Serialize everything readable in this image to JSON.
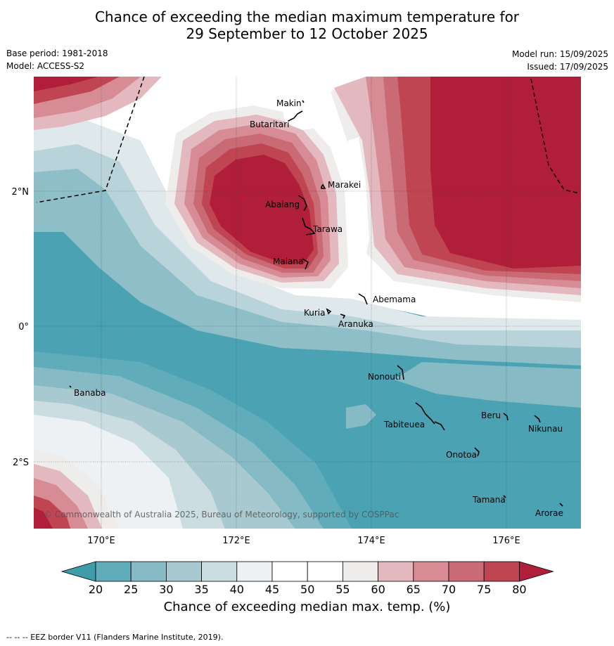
{
  "title_line1": "Chance of exceeding the median maximum temperature for",
  "title_line2": "29 September to 12 October 2025",
  "meta": {
    "base_period": "Base period: 1981-2018",
    "model": "Model: ACCESS-S2",
    "model_run": "Model run: 15/09/2025",
    "issued": "Issued: 17/09/2025"
  },
  "axes": {
    "lon_ticks": [
      "170°E",
      "172°E",
      "174°E",
      "176°E"
    ],
    "lat_ticks": [
      "2°N",
      "0°",
      "2°S"
    ]
  },
  "places": [
    {
      "name": "Makin"
    },
    {
      "name": "Butaritari"
    },
    {
      "name": "Marakei"
    },
    {
      "name": "Abaiang"
    },
    {
      "name": "Tarawa"
    },
    {
      "name": "Maiana"
    },
    {
      "name": "Abemama"
    },
    {
      "name": "Kuria"
    },
    {
      "name": "Aranuka"
    },
    {
      "name": "Nonouti"
    },
    {
      "name": "Banaba"
    },
    {
      "name": "Beru"
    },
    {
      "name": "Nikunau"
    },
    {
      "name": "Tabiteuea"
    },
    {
      "name": "Onotoa"
    },
    {
      "name": "Tamana"
    },
    {
      "name": "Arorae"
    }
  ],
  "copyright": "© Commonwealth of Australia 2025, Bureau of Meteorology, supported by COSPPac",
  "colorbar": {
    "ticks": [
      "20",
      "25",
      "30",
      "35",
      "40",
      "45",
      "50",
      "55",
      "60",
      "65",
      "70",
      "75",
      "80"
    ],
    "label": "Chance of exceeding median max. temp. (%)",
    "colors": [
      "#3e9cab",
      "#61acba",
      "#86bac5",
      "#a9c9d0",
      "#cbdde1",
      "#edf1f3",
      "#ffffff",
      "#ffffff",
      "#efecec",
      "#e3b8bf",
      "#d68b95",
      "#c96a75",
      "#c04553",
      "#b11e3a"
    ]
  },
  "footer": "--  --  -- EEZ border V11 (Flanders Marine Institute, 2019)."
}
